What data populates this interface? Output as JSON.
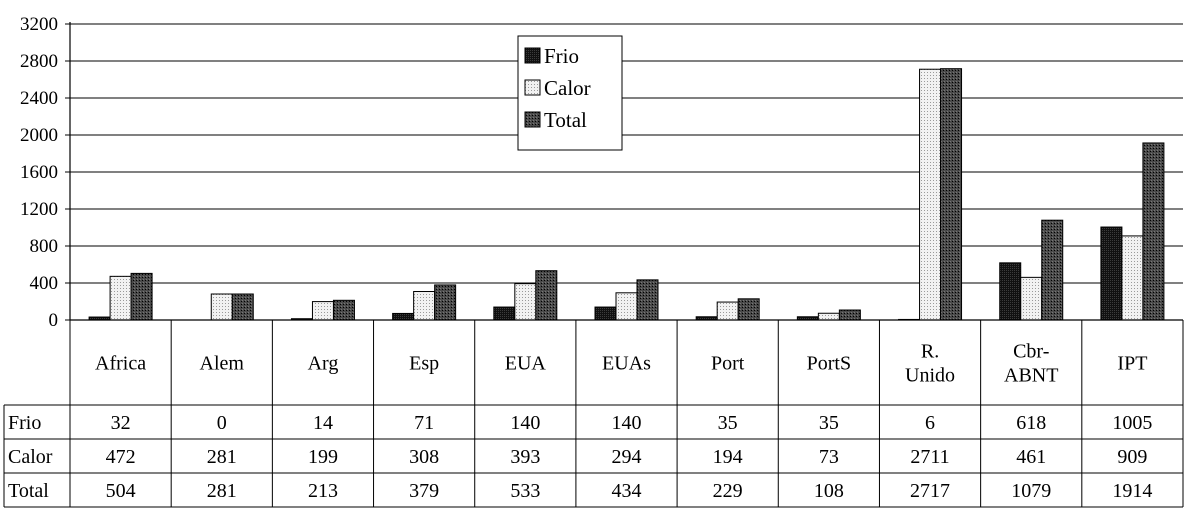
{
  "chart_data": {
    "type": "bar",
    "title": "",
    "xlabel": "",
    "ylabel": "",
    "ylim": [
      0,
      3200
    ],
    "yticks": [
      0,
      400,
      800,
      1200,
      1600,
      2000,
      2400,
      2800,
      3200
    ],
    "grid": true,
    "legend_position": "top-center",
    "categories": [
      "Africa",
      "Alem",
      "Arg",
      "Esp",
      "EUA",
      "EUAs",
      "Port",
      "PortS",
      "R. Unido",
      "Cbr-ABNT",
      "IPT"
    ],
    "category_lines": [
      [
        "Africa"
      ],
      [
        "Alem"
      ],
      [
        "Arg"
      ],
      [
        "Esp"
      ],
      [
        "EUA"
      ],
      [
        "EUAs"
      ],
      [
        "Port"
      ],
      [
        "PortS"
      ],
      [
        "R.",
        "Unido"
      ],
      [
        "Cbr-",
        "ABNT"
      ],
      [
        "IPT"
      ]
    ],
    "series": [
      {
        "name": "Frio",
        "color": "#1a1a1a",
        "values": [
          32,
          0,
          14,
          71,
          140,
          140,
          35,
          35,
          6,
          618,
          1005
        ]
      },
      {
        "name": "Calor",
        "color": "#ececec",
        "values": [
          472,
          281,
          199,
          308,
          393,
          294,
          194,
          73,
          2711,
          461,
          909
        ]
      },
      {
        "name": "Total",
        "color": "#3a3a3a",
        "values": [
          504,
          281,
          213,
          379,
          533,
          434,
          229,
          108,
          2717,
          1079,
          1914
        ]
      }
    ]
  }
}
